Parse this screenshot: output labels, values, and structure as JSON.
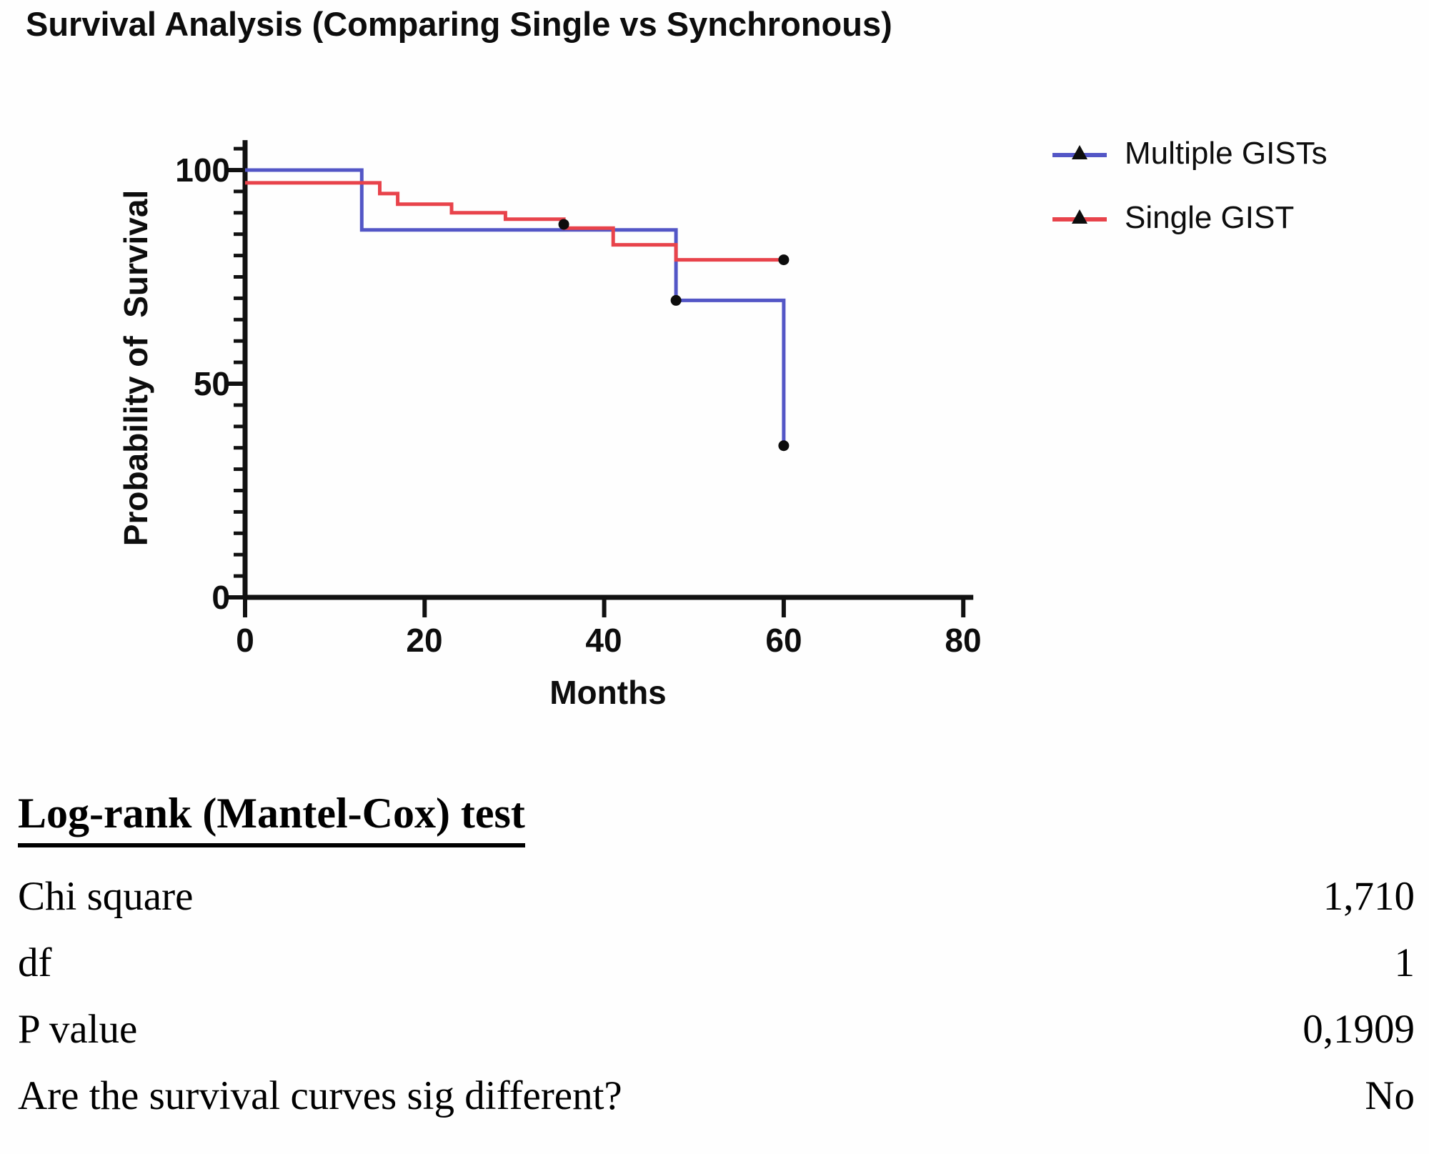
{
  "chart_data": {
    "type": "line",
    "subtype": "kaplan-meier-step",
    "title": "Survival Analysis (Comparing Single vs Synchronous)",
    "xlabel": "Months",
    "ylabel": "Probability of  Survival",
    "xlim": [
      0,
      80
    ],
    "ylim": [
      0,
      100
    ],
    "x_ticks": [
      0,
      20,
      40,
      60,
      80
    ],
    "y_ticks": [
      0,
      50,
      100
    ],
    "grid": "off",
    "legend_position": "upper-right-outside",
    "axis_color": "#111111",
    "marker_color": "#0d0d0d",
    "series": [
      {
        "name": "Multiple GISTs",
        "color": "#5356c6",
        "steps": [
          [
            0,
            100
          ],
          [
            13,
            100
          ],
          [
            13,
            86
          ],
          [
            48,
            86
          ],
          [
            48,
            69.5
          ],
          [
            60,
            69.5
          ],
          [
            60,
            35.5
          ]
        ],
        "markers": [
          [
            48,
            69.5
          ],
          [
            60,
            35.5
          ]
        ]
      },
      {
        "name": "Single GIST",
        "color": "#e8434b",
        "steps": [
          [
            0,
            97
          ],
          [
            15,
            97
          ],
          [
            15,
            94.5
          ],
          [
            17,
            94.5
          ],
          [
            17,
            92
          ],
          [
            23,
            92
          ],
          [
            23,
            90
          ],
          [
            29,
            90
          ],
          [
            29,
            88.5
          ],
          [
            35.5,
            88.5
          ],
          [
            35.5,
            86.4
          ],
          [
            41,
            86.4
          ],
          [
            41,
            82.5
          ],
          [
            48,
            82.5
          ],
          [
            48,
            79
          ],
          [
            60,
            79
          ]
        ],
        "markers": [
          [
            35.5,
            87.3
          ],
          [
            60,
            79
          ]
        ]
      }
    ]
  },
  "stats": {
    "heading": "Log-rank (Mantel-Cox) test",
    "rows": [
      {
        "label": "Chi square",
        "value": "1,710"
      },
      {
        "label": "df",
        "value": "1"
      },
      {
        "label": "P value",
        "value": "0,1909"
      },
      {
        "label": "Are the survival curves sig different?",
        "value": "No"
      }
    ]
  }
}
